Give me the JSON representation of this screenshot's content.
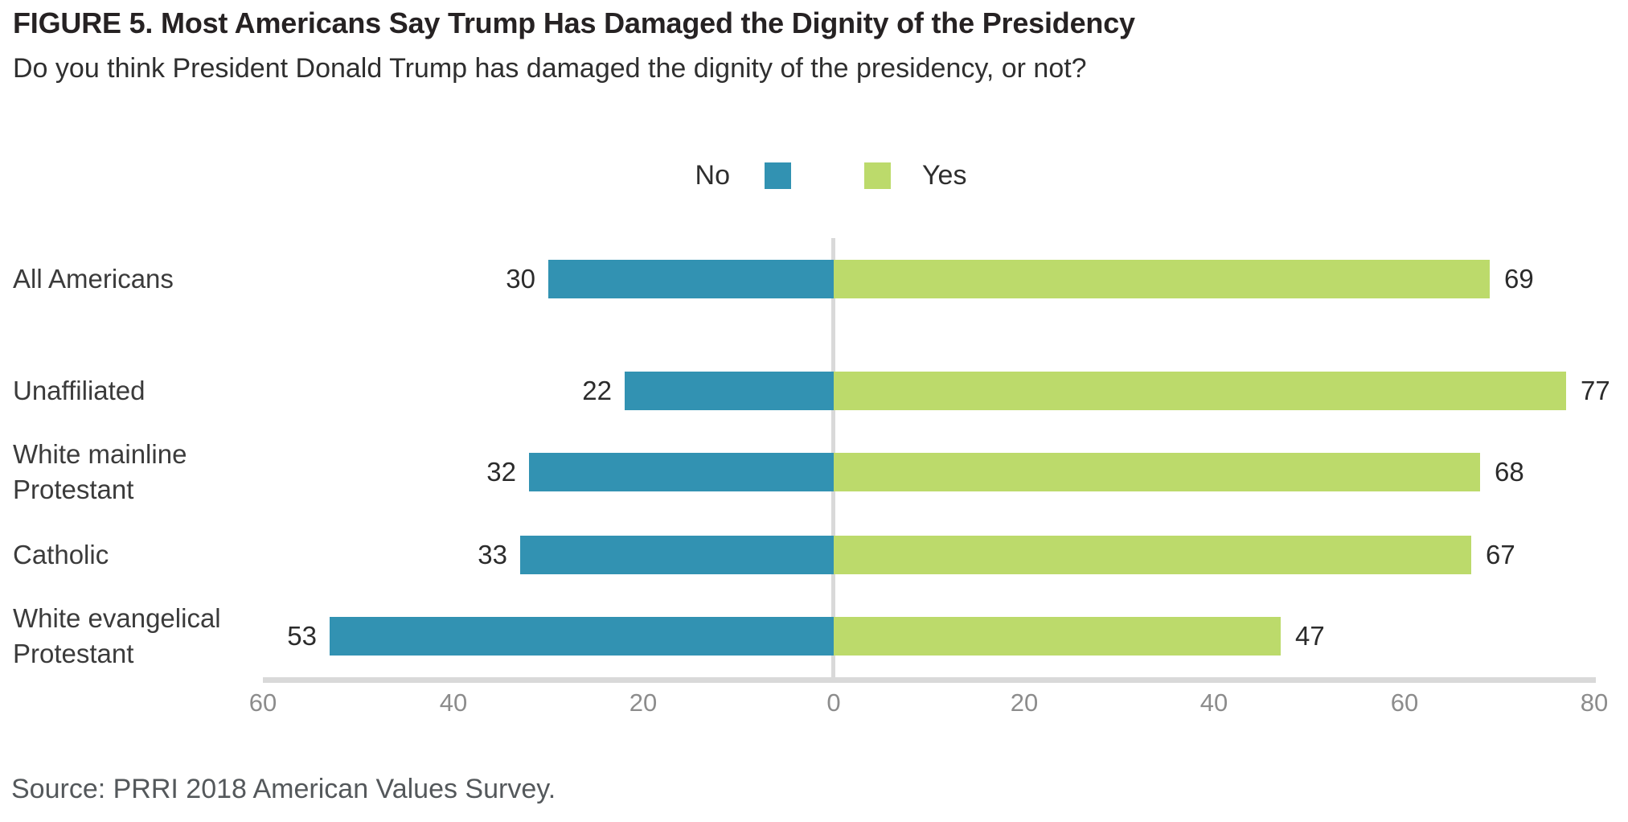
{
  "title": "FIGURE 5. Most Americans Say Trump Has Damaged the Dignity of the Presidency",
  "subtitle": "Do you think President Donald Trump has damaged the dignity of the presidency, or not?",
  "legend": {
    "no_label": "No",
    "yes_label": "Yes"
  },
  "source": "Source: PRRI 2018 American Values Survey.",
  "colors": {
    "no_bar": "#3292b2",
    "yes_bar": "#bcda6b",
    "axis_line": "#d9d9d9",
    "zero_line": "#d9d9d9",
    "tick_text": "#8c8c8c",
    "title_text": "#262223",
    "source_text": "#54585b"
  },
  "chart_data": {
    "type": "bar",
    "orientation": "horizontal-diverging",
    "title": "FIGURE 5. Most Americans Say Trump Has Damaged the Dignity of the Presidency",
    "subtitle": "Do you think President Donald Trump has damaged the dignity of the presidency, or not?",
    "categories": [
      "All Americans",
      "Unaffiliated",
      "White mainline Protestant",
      "Catholic",
      "White evangelical Protestant"
    ],
    "series": [
      {
        "name": "No",
        "direction": "left",
        "color": "#3292b2",
        "values": [
          30,
          22,
          32,
          33,
          53
        ]
      },
      {
        "name": "Yes",
        "direction": "right",
        "color": "#bcda6b",
        "values": [
          69,
          77,
          68,
          67,
          47
        ]
      }
    ],
    "x_ticks": [
      -60,
      -40,
      -20,
      0,
      20,
      40,
      60,
      80
    ],
    "x_tick_labels": [
      "60",
      "40",
      "20",
      "0",
      "20",
      "40",
      "60",
      "80"
    ],
    "xlim": [
      -60,
      80
    ],
    "value_labels_shown": true,
    "legend_position": "top-center",
    "grid": false,
    "source": "Source: PRRI 2018 American Values Survey."
  }
}
